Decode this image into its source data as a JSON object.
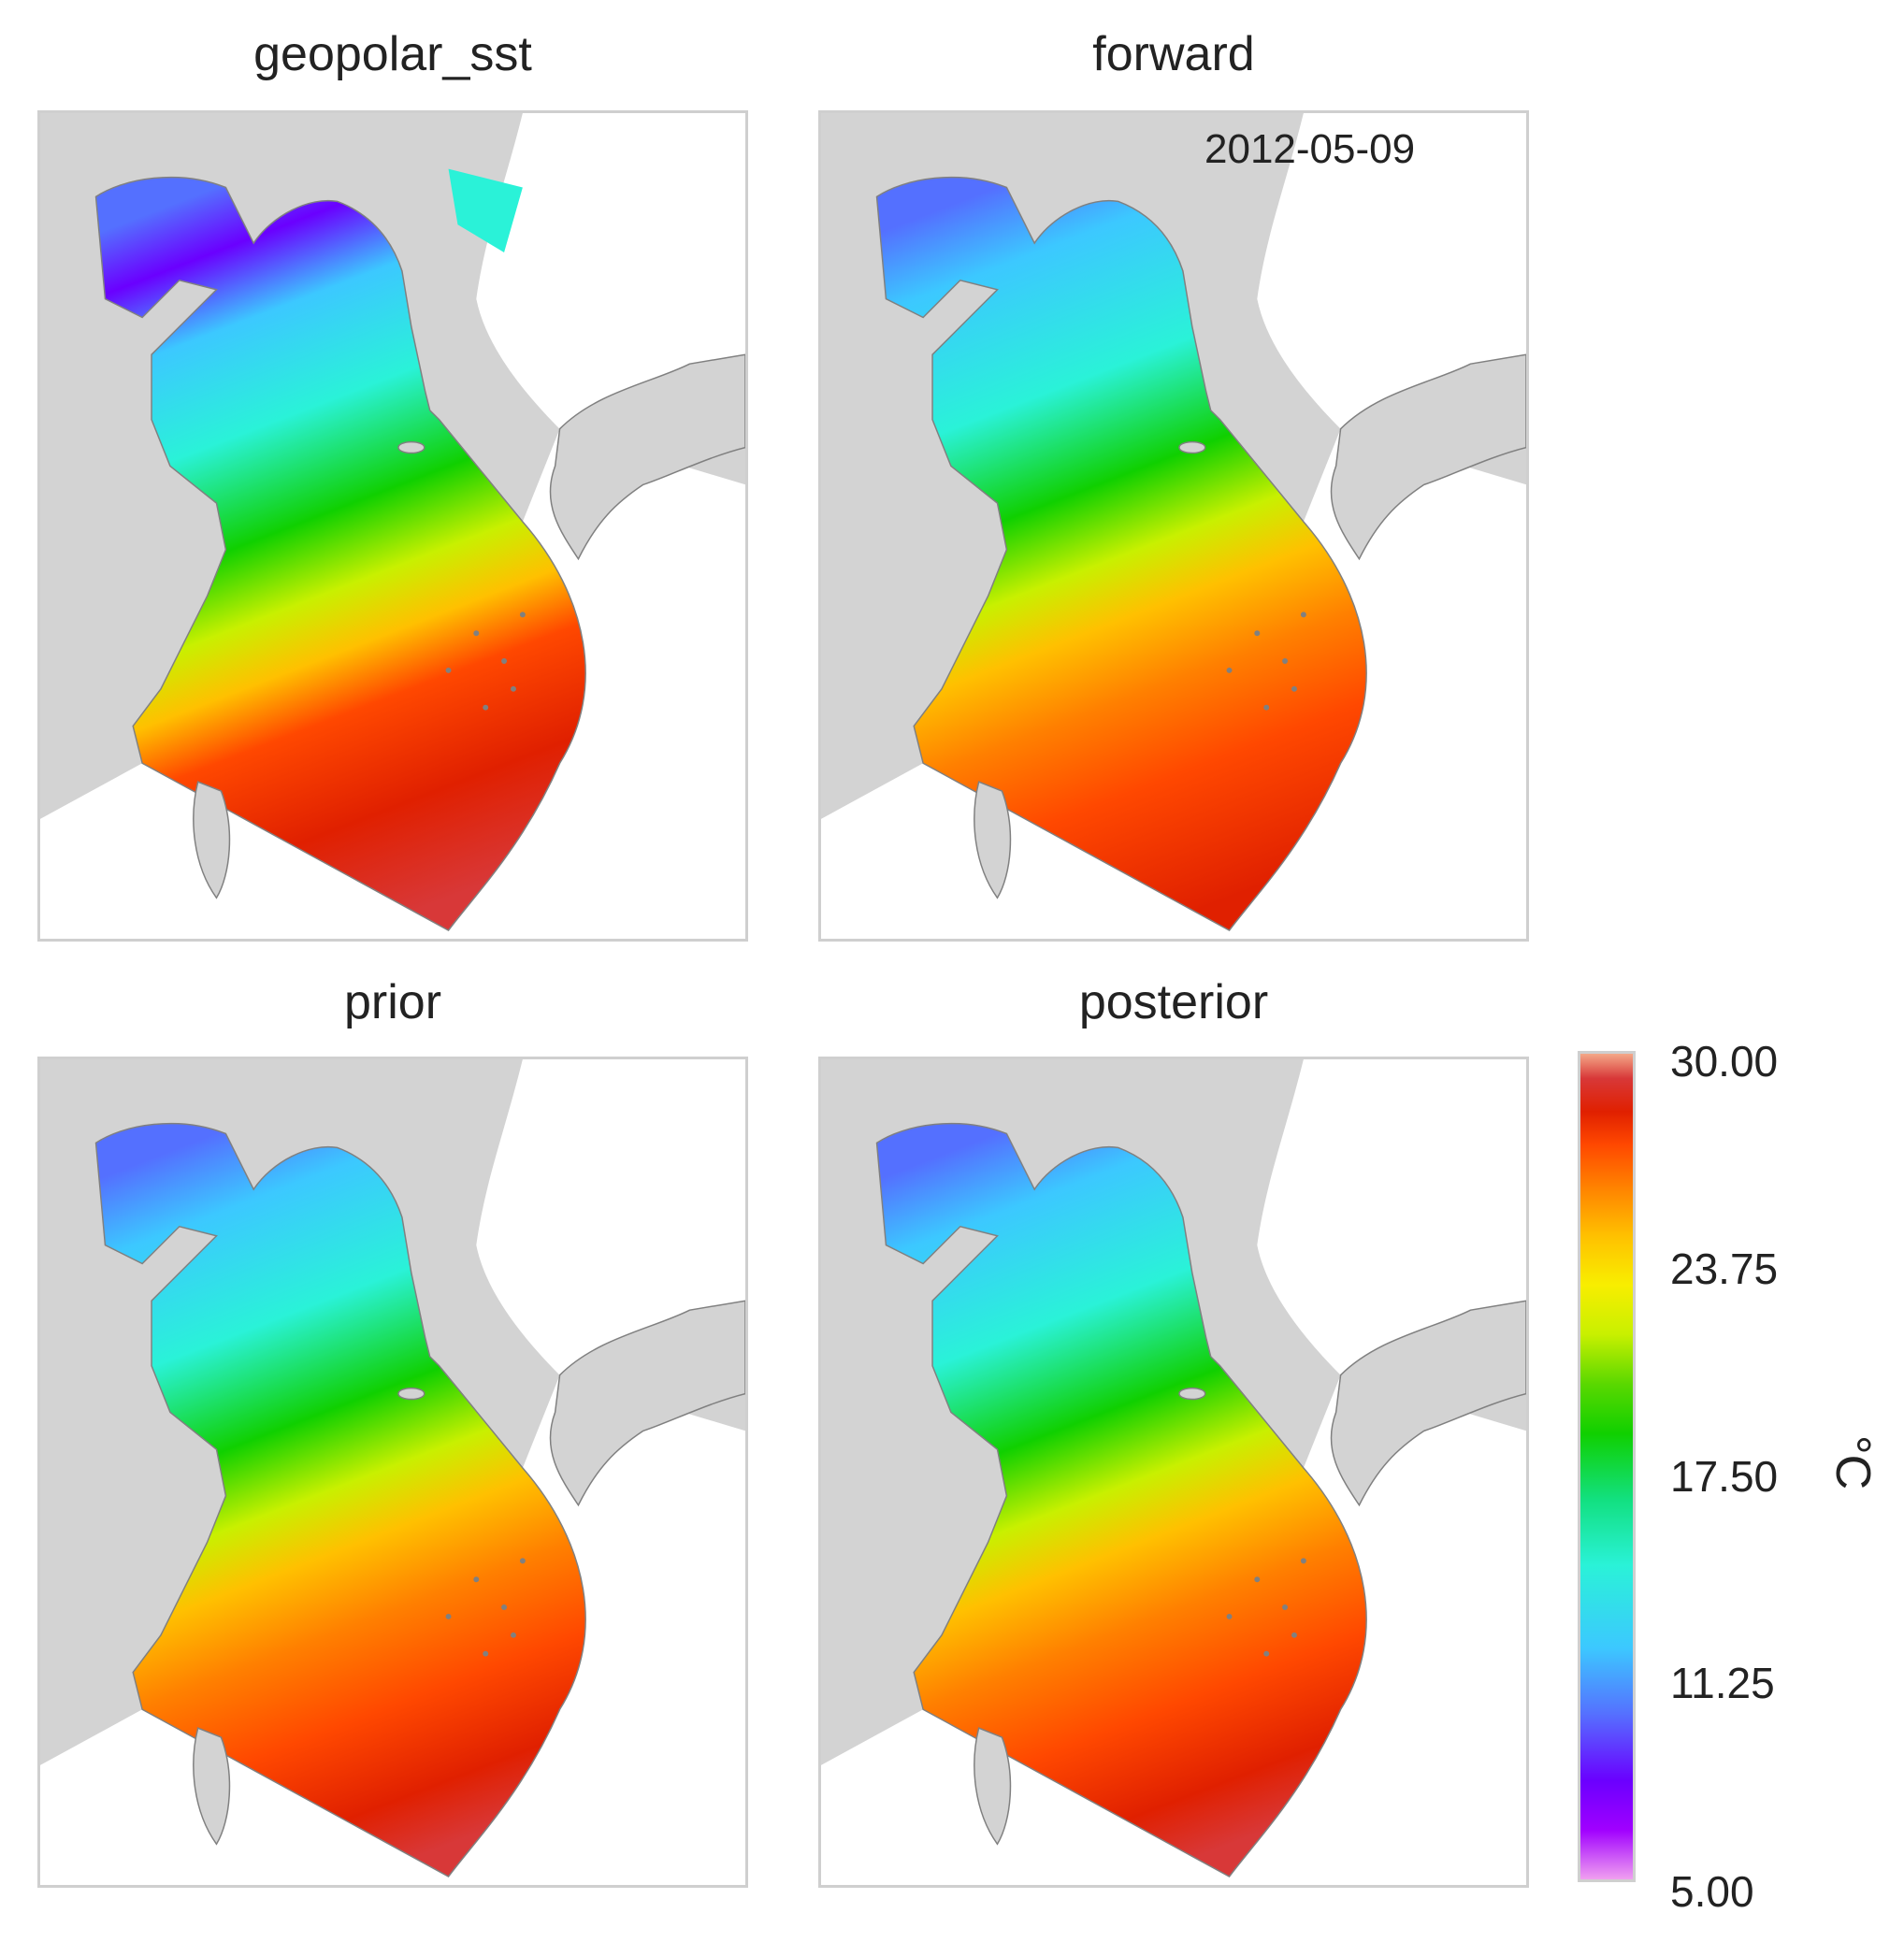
{
  "panels": [
    {
      "title": "geopolar_sst",
      "variant": "obs",
      "date": ""
    },
    {
      "title": "forward",
      "variant": "fwd",
      "date": "2012-05-09"
    },
    {
      "title": "prior",
      "variant": "model",
      "date": ""
    },
    {
      "title": "posterior",
      "variant": "model",
      "date": ""
    }
  ],
  "colorbar": {
    "ticks": [
      "30.00",
      "23.75",
      "17.50",
      "11.25",
      "5.00"
    ],
    "unit": "°C",
    "min": 5.0,
    "max": 30.0,
    "colormap": "gist_ncar-like (violet-blue-cyan-green-yellow-orange-red)"
  },
  "colors": {
    "land": "#d3d3d3",
    "coast": "#808080",
    "frame": "#cfcfcf"
  }
}
